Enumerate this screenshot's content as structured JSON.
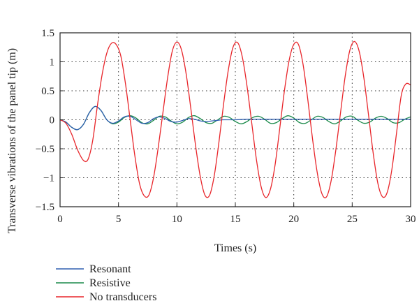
{
  "chart_data": {
    "type": "line",
    "xlabel": "Times (s)",
    "ylabel": "Transverse vibrations of the panel tip (m)",
    "xlim": [
      0,
      30
    ],
    "ylim": [
      -1.5,
      1.5
    ],
    "xticks": [
      0,
      5,
      10,
      15,
      20,
      25,
      30
    ],
    "yticks": [
      1.5,
      1,
      0.5,
      0,
      -0.5,
      -1,
      -1.5
    ],
    "xtick_labels": [
      "0",
      "5",
      "10",
      "15",
      "20",
      "25",
      "30"
    ],
    "ytick_labels": [
      "1.5",
      "1",
      "0.5",
      "0",
      "−0.5",
      "−1",
      "−1.5"
    ],
    "grid": true,
    "legend_position": "bottom-left, below plot",
    "series": [
      {
        "name": "Resonant",
        "color": "#2f5fb0",
        "x": [
          0,
          0.5,
          1.0,
          1.5,
          2.0,
          2.5,
          3.0,
          3.5,
          4.0,
          4.5,
          5.0,
          5.5,
          6.0,
          6.5,
          7.0,
          7.5,
          8.0,
          8.5,
          9.0,
          9.5,
          10.0,
          10.5,
          11.0,
          11.5,
          12.0,
          12.5,
          13.0,
          13.5,
          14.0,
          15.0,
          16.0,
          17.0,
          18.0,
          19.0,
          20.0,
          22.0,
          24.0,
          26.0,
          28.0,
          30.0
        ],
        "y": [
          0,
          -0.04,
          -0.13,
          -0.17,
          -0.08,
          0.12,
          0.23,
          0.16,
          0.0,
          -0.06,
          -0.02,
          0.05,
          0.06,
          0.0,
          -0.06,
          -0.05,
          0.02,
          0.05,
          0.02,
          -0.03,
          -0.04,
          -0.01,
          0.02,
          0.01,
          -0.02,
          -0.03,
          -0.02,
          -0.01,
          0.0,
          0.0,
          0.01,
          0.01,
          0.01,
          0.01,
          0.01,
          0.01,
          0.01,
          0.01,
          0.01,
          0.01
        ]
      },
      {
        "name": "Resistive",
        "color": "#1a8a4a",
        "x": [
          0,
          0.5,
          1.0,
          1.5,
          2.0,
          2.5,
          3.0,
          3.5,
          4.0,
          4.5,
          5.0,
          5.5,
          6.0,
          6.5,
          7.0,
          7.5,
          8.0,
          8.5,
          9.0,
          9.5,
          10.0,
          10.5,
          11.0,
          11.5,
          12.0,
          12.5,
          13.0,
          13.5,
          14.0,
          14.5,
          15.0,
          15.5,
          16.0,
          16.5,
          17.0,
          17.5,
          18.0,
          18.5,
          19.0,
          19.5,
          20.0,
          20.5,
          21.0,
          21.5,
          22.0,
          22.5,
          23.0,
          23.5,
          24.0,
          24.5,
          25.0,
          25.5,
          26.0,
          26.5,
          27.0,
          27.5,
          28.0,
          28.5,
          29.0,
          29.5,
          30.0
        ],
        "y": [
          0,
          -0.04,
          -0.13,
          -0.17,
          -0.08,
          0.12,
          0.23,
          0.16,
          0.0,
          -0.07,
          -0.04,
          0.04,
          0.07,
          0.03,
          -0.05,
          -0.07,
          -0.01,
          0.06,
          0.05,
          -0.02,
          -0.07,
          -0.04,
          0.04,
          0.07,
          0.02,
          -0.05,
          -0.06,
          0.0,
          0.06,
          0.04,
          -0.03,
          -0.07,
          -0.03,
          0.04,
          0.06,
          0.01,
          -0.06,
          -0.05,
          0.02,
          0.07,
          0.03,
          -0.05,
          -0.06,
          0.0,
          0.06,
          0.04,
          -0.03,
          -0.07,
          -0.02,
          0.05,
          0.06,
          -0.01,
          -0.06,
          -0.04,
          0.03,
          0.06,
          0.02,
          -0.05,
          -0.05,
          0.01,
          0.05
        ]
      },
      {
        "name": "No transducers",
        "color": "#e8262b",
        "x": [
          0,
          0.5,
          1.0,
          1.5,
          2.0,
          2.4,
          2.8,
          3.2,
          3.6,
          4.0,
          4.4,
          4.8,
          5.2,
          5.6,
          6.0,
          6.4,
          6.8,
          7.2,
          7.6,
          8.0,
          8.4,
          8.8,
          9.2,
          9.6,
          10.0,
          10.4,
          10.8,
          11.2,
          11.6,
          12.0,
          12.4,
          12.8,
          13.2,
          13.6,
          14.0,
          14.4,
          14.8,
          15.2,
          15.6,
          16.0,
          16.4,
          16.8,
          17.2,
          17.6,
          18.0,
          18.4,
          18.8,
          19.2,
          19.6,
          20.0,
          20.4,
          20.8,
          21.2,
          21.6,
          22.0,
          22.4,
          22.8,
          23.2,
          23.6,
          24.0,
          24.4,
          24.8,
          25.2,
          25.6,
          26.0,
          26.4,
          26.8,
          27.2,
          27.6,
          28.0,
          28.4,
          28.8,
          29.2,
          29.6,
          30.0
        ],
        "y": [
          0,
          -0.06,
          -0.25,
          -0.52,
          -0.7,
          -0.68,
          -0.35,
          0.25,
          0.78,
          1.15,
          1.32,
          1.3,
          1.1,
          0.62,
          0.0,
          -0.62,
          -1.1,
          -1.31,
          -1.3,
          -1.0,
          -0.48,
          0.12,
          0.72,
          1.18,
          1.34,
          1.2,
          0.78,
          0.18,
          -0.45,
          -0.98,
          -1.3,
          -1.3,
          -0.96,
          -0.38,
          0.28,
          0.86,
          1.25,
          1.33,
          1.08,
          0.58,
          -0.05,
          -0.68,
          -1.15,
          -1.34,
          -1.2,
          -0.78,
          -0.15,
          0.5,
          1.02,
          1.3,
          1.3,
          0.95,
          0.35,
          -0.32,
          -0.9,
          -1.27,
          -1.33,
          -1.05,
          -0.52,
          0.12,
          0.75,
          1.2,
          1.35,
          1.18,
          0.72,
          0.08,
          -0.58,
          -1.1,
          -1.33,
          -1.25,
          -0.85,
          -0.22,
          0.42,
          0.62,
          0.6
        ]
      }
    ]
  }
}
